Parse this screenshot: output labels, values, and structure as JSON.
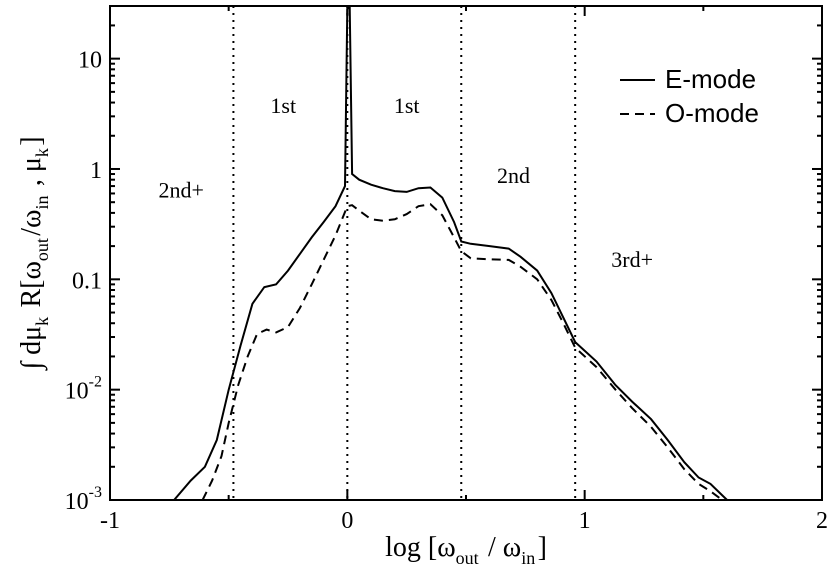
{
  "chart_data": {
    "type": "line",
    "xlabel": "log [ω_out / ω_in]",
    "ylabel": "∫ dμ_k R[ω_out/ω_in , μ_k]",
    "xlim": [
      -1,
      2
    ],
    "ylim": [
      0.001,
      30
    ],
    "yscale": "log",
    "x_ticks": [
      -1,
      0,
      1,
      2
    ],
    "x_tick_labels": [
      "-1",
      "0",
      "1",
      "2"
    ],
    "y_ticks": [
      0.001,
      0.01,
      0.1,
      1,
      10
    ],
    "y_tick_labels": [
      {
        "base": "10",
        "exp": "-3"
      },
      {
        "base": "10",
        "exp": "-2"
      },
      {
        "base": "0.1",
        "exp": ""
      },
      {
        "base": "1",
        "exp": ""
      },
      {
        "base": "10",
        "exp": ""
      }
    ],
    "grid": false,
    "legend_position": "top-right",
    "vlines": [
      -0.48,
      0,
      0.48,
      0.96
    ],
    "region_labels": [
      {
        "text": "2nd+",
        "x": -0.7,
        "y": 0.55
      },
      {
        "text": "1st",
        "x": -0.27,
        "y": 3.2
      },
      {
        "text": "1st",
        "x": 0.25,
        "y": 3.2
      },
      {
        "text": "2nd",
        "x": 0.7,
        "y": 0.75
      },
      {
        "text": "3rd+",
        "x": 1.2,
        "y": 0.13
      }
    ],
    "series": [
      {
        "name": "E-mode",
        "style": "solid",
        "color": "#000000",
        "points": [
          [
            -0.73,
            0.001
          ],
          [
            -0.66,
            0.0015
          ],
          [
            -0.6,
            0.002
          ],
          [
            -0.55,
            0.0035
          ],
          [
            -0.5,
            0.01
          ],
          [
            -0.45,
            0.025
          ],
          [
            -0.4,
            0.06
          ],
          [
            -0.35,
            0.085
          ],
          [
            -0.3,
            0.09
          ],
          [
            -0.25,
            0.12
          ],
          [
            -0.2,
            0.17
          ],
          [
            -0.15,
            0.24
          ],
          [
            -0.1,
            0.33
          ],
          [
            -0.05,
            0.46
          ],
          [
            -0.01,
            0.7
          ],
          [
            0.0,
            28
          ],
          [
            0.01,
            30
          ],
          [
            0.02,
            0.9
          ],
          [
            0.05,
            0.8
          ],
          [
            0.1,
            0.72
          ],
          [
            0.15,
            0.67
          ],
          [
            0.2,
            0.63
          ],
          [
            0.25,
            0.62
          ],
          [
            0.3,
            0.67
          ],
          [
            0.35,
            0.68
          ],
          [
            0.4,
            0.55
          ],
          [
            0.45,
            0.33
          ],
          [
            0.48,
            0.22
          ],
          [
            0.52,
            0.21
          ],
          [
            0.6,
            0.2
          ],
          [
            0.68,
            0.19
          ],
          [
            0.73,
            0.16
          ],
          [
            0.8,
            0.12
          ],
          [
            0.86,
            0.075
          ],
          [
            0.91,
            0.045
          ],
          [
            0.96,
            0.027
          ],
          [
            1.05,
            0.018
          ],
          [
            1.13,
            0.011
          ],
          [
            1.2,
            0.0078
          ],
          [
            1.28,
            0.0054
          ],
          [
            1.35,
            0.0035
          ],
          [
            1.42,
            0.0022
          ],
          [
            1.48,
            0.0016
          ],
          [
            1.53,
            0.0014
          ],
          [
            1.58,
            0.0011
          ],
          [
            1.6,
            0.001
          ]
        ]
      },
      {
        "name": "O-mode",
        "style": "dashed",
        "color": "#000000",
        "points": [
          [
            -0.61,
            0.001
          ],
          [
            -0.57,
            0.0015
          ],
          [
            -0.53,
            0.0025
          ],
          [
            -0.5,
            0.005
          ],
          [
            -0.46,
            0.011
          ],
          [
            -0.42,
            0.02
          ],
          [
            -0.38,
            0.032
          ],
          [
            -0.34,
            0.035
          ],
          [
            -0.3,
            0.033
          ],
          [
            -0.25,
            0.037
          ],
          [
            -0.2,
            0.055
          ],
          [
            -0.15,
            0.09
          ],
          [
            -0.1,
            0.15
          ],
          [
            -0.05,
            0.25
          ],
          [
            -0.02,
            0.36
          ],
          [
            0.0,
            0.46
          ],
          [
            0.02,
            0.47
          ],
          [
            0.05,
            0.42
          ],
          [
            0.1,
            0.35
          ],
          [
            0.15,
            0.34
          ],
          [
            0.2,
            0.35
          ],
          [
            0.25,
            0.39
          ],
          [
            0.3,
            0.46
          ],
          [
            0.35,
            0.48
          ],
          [
            0.4,
            0.38
          ],
          [
            0.45,
            0.24
          ],
          [
            0.48,
            0.18
          ],
          [
            0.52,
            0.155
          ],
          [
            0.6,
            0.152
          ],
          [
            0.68,
            0.15
          ],
          [
            0.73,
            0.13
          ],
          [
            0.8,
            0.1
          ],
          [
            0.86,
            0.065
          ],
          [
            0.91,
            0.04
          ],
          [
            0.96,
            0.024
          ],
          [
            1.05,
            0.016
          ],
          [
            1.13,
            0.01
          ],
          [
            1.2,
            0.0068
          ],
          [
            1.28,
            0.0046
          ],
          [
            1.35,
            0.003
          ],
          [
            1.42,
            0.0019
          ],
          [
            1.48,
            0.0014
          ],
          [
            1.53,
            0.0012
          ],
          [
            1.58,
            0.001
          ]
        ]
      }
    ]
  }
}
